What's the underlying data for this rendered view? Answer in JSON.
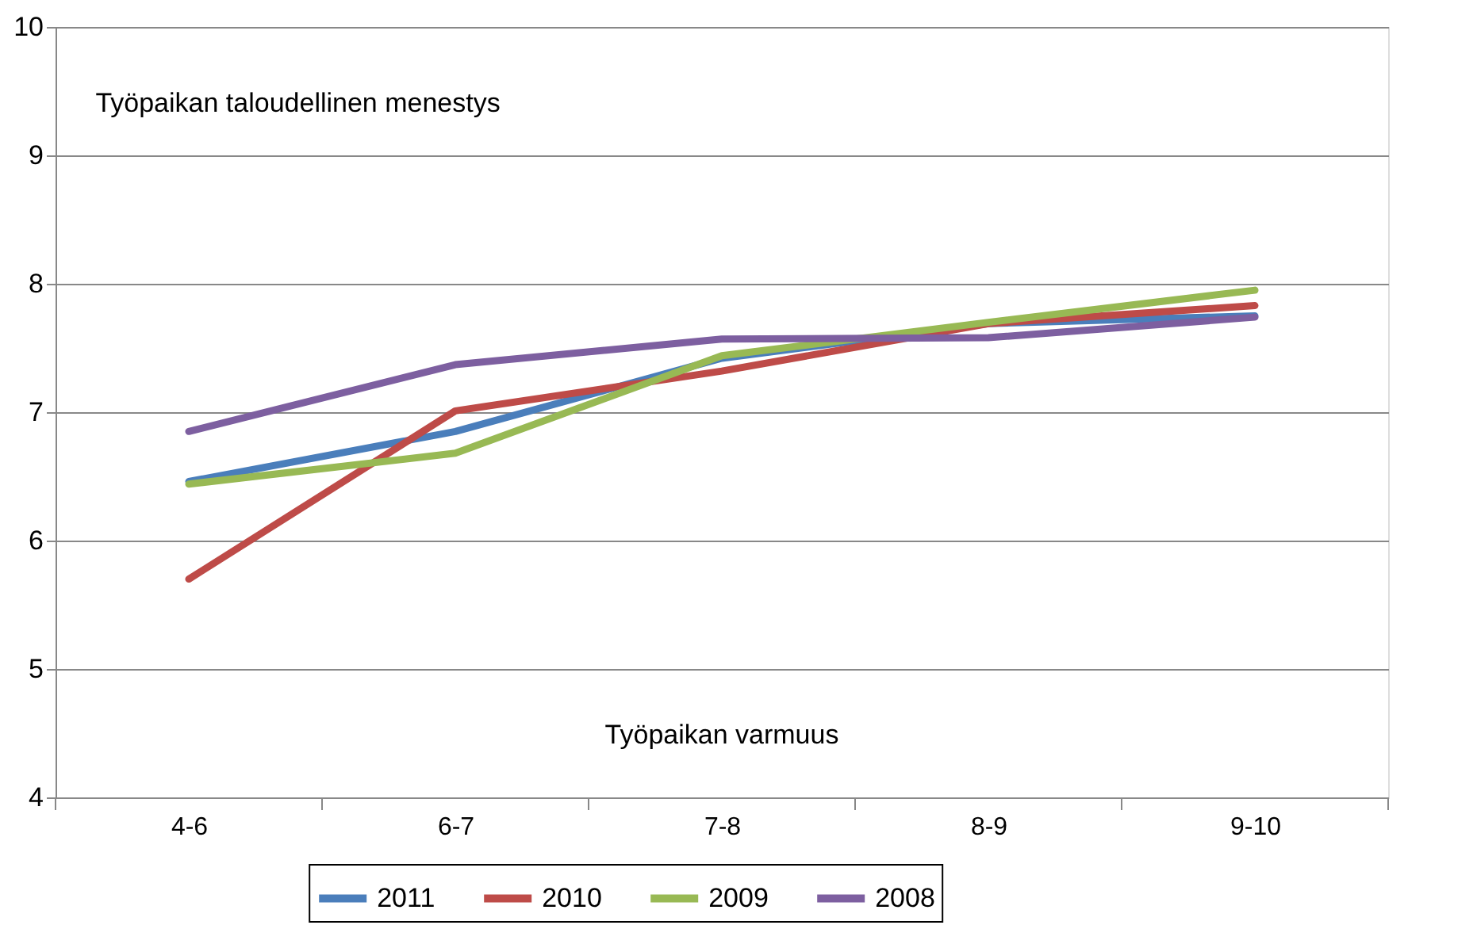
{
  "chart_data": {
    "type": "line",
    "categories": [
      "4-6",
      "6-7",
      "7-8",
      "8-9",
      "9-10"
    ],
    "series": [
      {
        "name": "2011",
        "color": "#4a7ebb",
        "values": [
          6.46,
          6.85,
          7.42,
          7.69,
          7.75
        ]
      },
      {
        "name": "2010",
        "color": "#be4b48",
        "values": [
          5.7,
          7.01,
          7.32,
          7.69,
          7.83
        ]
      },
      {
        "name": "2009",
        "color": "#98b954",
        "values": [
          6.44,
          6.68,
          7.44,
          7.7,
          7.95
        ]
      },
      {
        "name": "2008",
        "color": "#7d5fa0",
        "values": [
          6.85,
          7.37,
          7.57,
          7.58,
          7.74
        ]
      }
    ],
    "ylim": [
      4,
      10
    ],
    "yticks": [
      4,
      5,
      6,
      7,
      8,
      9,
      10
    ],
    "annotations": [
      "Työpaikan taloudellinen menestys",
      "Työpaikan varmuus"
    ],
    "grid": "y",
    "legend": "bottom",
    "marker": "none",
    "line_style": "solid"
  }
}
